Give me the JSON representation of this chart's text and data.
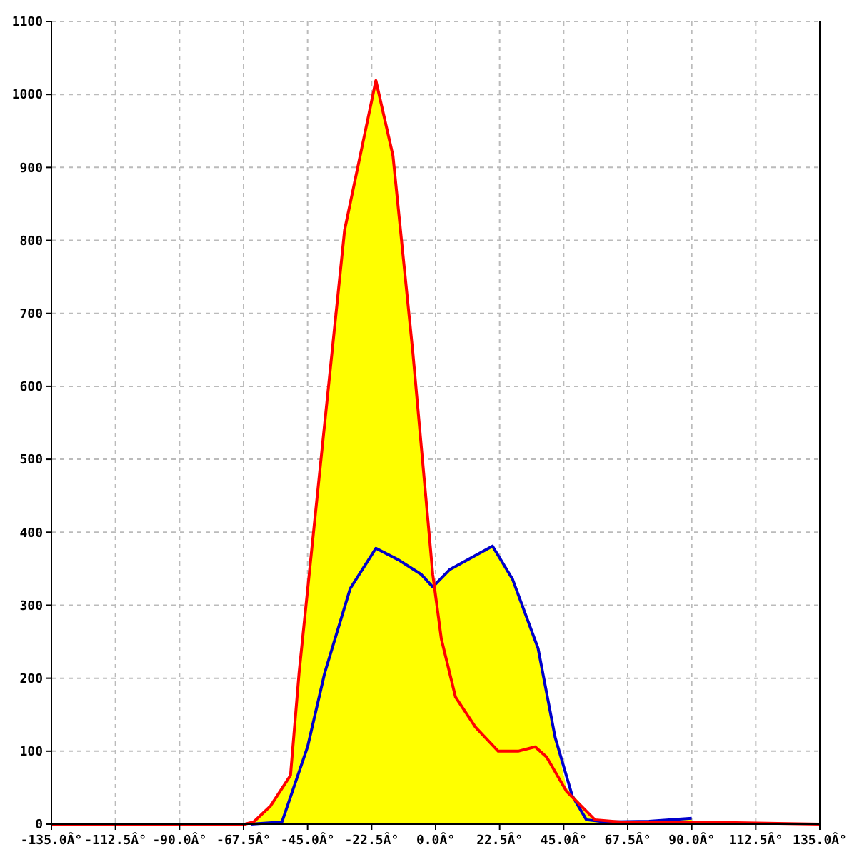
{
  "chart_data": {
    "type": "line",
    "xlim": [
      -135,
      135
    ],
    "ylim": [
      0,
      1100
    ],
    "xticks": [
      {
        "value": -135,
        "label": "-135.0Â°"
      },
      {
        "value": -112.5,
        "label": "-112.5Â°"
      },
      {
        "value": -90,
        "label": "-90.0Â°"
      },
      {
        "value": -67.5,
        "label": "-67.5Â°"
      },
      {
        "value": -45,
        "label": "-45.0Â°"
      },
      {
        "value": -22.5,
        "label": "-22.5Â°"
      },
      {
        "value": 0,
        "label": "0.0Â°"
      },
      {
        "value": 22.5,
        "label": "22.5Â°"
      },
      {
        "value": 45,
        "label": "45.0Â°"
      },
      {
        "value": 67.5,
        "label": "67.5Â°"
      },
      {
        "value": 90,
        "label": "90.0Â°"
      },
      {
        "value": 112.5,
        "label": "112.5Â°"
      },
      {
        "value": 135,
        "label": "135.0Â°"
      }
    ],
    "yticks": [
      0,
      100,
      200,
      300,
      400,
      500,
      600,
      700,
      800,
      900,
      1000,
      1100
    ],
    "grid": true,
    "line_style": "solid",
    "series": [
      {
        "type": "area",
        "color": "#ffff00",
        "x": [
          -67,
          -64,
          -58,
          -51,
          -48,
          -40,
          -32,
          -21,
          -15,
          -8,
          -1,
          0,
          5,
          13,
          20,
          27,
          36,
          42,
          46,
          56,
          65,
          75,
          90
        ],
        "values": [
          0,
          3,
          25,
          67,
          207,
          511,
          814,
          1019,
          916,
          646,
          342,
          330,
          349,
          366,
          381,
          336,
          241,
          119,
          50,
          6,
          3,
          4,
          8
        ]
      },
      {
        "color": "#0000cc",
        "x": [
          -65,
          -54,
          -45,
          -39,
          -30,
          -21,
          -13,
          -5,
          -1,
          5,
          13,
          20,
          27,
          36,
          42,
          48,
          53,
          60,
          75,
          90
        ],
        "values": [
          0,
          3,
          106,
          207,
          323,
          378,
          362,
          342,
          325,
          349,
          366,
          381,
          336,
          241,
          119,
          39,
          6,
          3,
          4,
          8
        ]
      },
      {
        "color": "#ff0000",
        "x": [
          -135,
          -67,
          -64,
          -58,
          -51,
          -48,
          -40,
          -32,
          -21,
          -15,
          -8,
          -1,
          2,
          7,
          14,
          22,
          29,
          35,
          39,
          46,
          56,
          65,
          90,
          135
        ],
        "values": [
          0,
          0,
          3,
          25,
          67,
          207,
          511,
          814,
          1019,
          916,
          646,
          342,
          254,
          174,
          133,
          100,
          100,
          106,
          92,
          45,
          6,
          3,
          3,
          0
        ]
      }
    ]
  }
}
